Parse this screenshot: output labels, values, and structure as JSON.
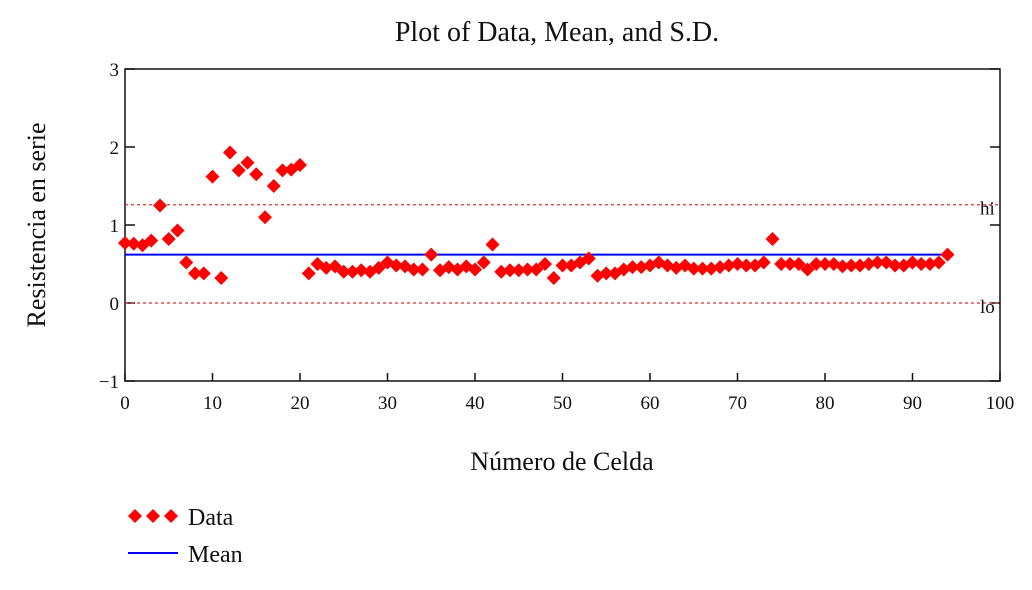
{
  "chart_data": {
    "type": "scatter",
    "title": "Plot of Data, Mean, and S.D.",
    "xlabel": "Número de Celda",
    "ylabel": "Resistencia en serie",
    "xlim": [
      0,
      100
    ],
    "ylim": [
      -1,
      3
    ],
    "xticks": [
      0,
      10,
      20,
      30,
      40,
      50,
      60,
      70,
      80,
      90,
      100
    ],
    "yticks": [
      3,
      2,
      1,
      0,
      -1
    ],
    "ytick_labels": [
      "3",
      "2",
      "1",
      "0",
      "−1"
    ],
    "grid": false,
    "legend_placement": "bottom-left",
    "legend": [
      {
        "label": "Data",
        "marker": "diamond",
        "color": "#ff0000"
      },
      {
        "label": "Mean",
        "color": "#0000ee"
      }
    ],
    "series": [
      {
        "name": "Data",
        "color": "#ff0000",
        "x_start": 0,
        "values": [
          0.77,
          0.76,
          0.74,
          0.8,
          1.25,
          0.82,
          0.93,
          0.52,
          0.38,
          0.38,
          1.62,
          0.32,
          1.93,
          1.7,
          1.8,
          1.65,
          1.1,
          1.5,
          1.7,
          1.71,
          1.77,
          0.38,
          0.5,
          0.45,
          0.47,
          0.4,
          0.4,
          0.42,
          0.4,
          0.45,
          0.52,
          0.48,
          0.47,
          0.43,
          0.43,
          0.62,
          0.42,
          0.46,
          0.43,
          0.47,
          0.43,
          0.52,
          0.75,
          0.4,
          0.42,
          0.42,
          0.43,
          0.43,
          0.5,
          0.32,
          0.48,
          0.48,
          0.52,
          0.57,
          0.35,
          0.38,
          0.38,
          0.43,
          0.46,
          0.46,
          0.48,
          0.52,
          0.48,
          0.45,
          0.48,
          0.44,
          0.44,
          0.44,
          0.46,
          0.48,
          0.5,
          0.48,
          0.48,
          0.52,
          0.82,
          0.5,
          0.5,
          0.5,
          0.43,
          0.5,
          0.5,
          0.5,
          0.47,
          0.48,
          0.48,
          0.5,
          0.52,
          0.52,
          0.48,
          0.48,
          0.52,
          0.5,
          0.5,
          0.52,
          0.62
        ]
      },
      {
        "name": "Mean",
        "color": "#0000ee",
        "value": 0.62,
        "x_range": [
          0,
          94
        ]
      }
    ],
    "reference_lines": [
      {
        "label": "hi",
        "value": 1.26,
        "color": "#dd3333",
        "style": "dotted"
      },
      {
        "label": "lo",
        "value": 0.0,
        "color": "#dd3333",
        "style": "dotted"
      }
    ]
  }
}
